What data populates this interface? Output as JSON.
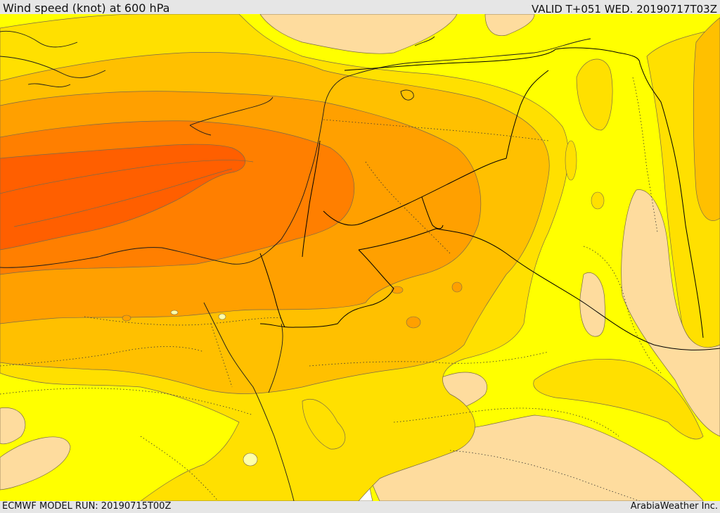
{
  "header": {
    "title": "Wind speed (knot) at 600 hPa",
    "valid": "VALID T+051 WED. 20190717T03Z"
  },
  "footer": {
    "model_run": "ECMWF MODEL RUN: 20190715T00Z",
    "credit": "ArabiaWeather Inc."
  },
  "colors": {
    "c1": "#ffffa8",
    "c2": "#fedc9e",
    "c3": "#ffff00",
    "c4": "#ffe000",
    "c5": "#ffc000",
    "c6": "#ffa000",
    "c7": "#ff7f00",
    "c8": "#ff5f00",
    "land_missing": "#ffffff",
    "contour": "#7a6a4a",
    "border": "#000000"
  }
}
